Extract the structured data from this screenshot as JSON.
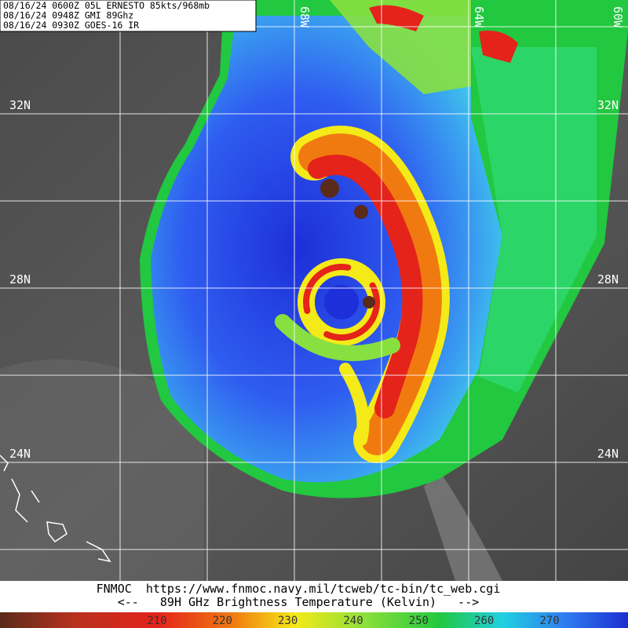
{
  "header": {
    "lines": [
      "08/16/24 0600Z  05L ERNESTO 85kts/968mb",
      "08/16/24 0948Z  GMI 89Ghz",
      "08/16/24 0930Z  GOES-16 IR"
    ]
  },
  "map": {
    "lat_grid": [
      34,
      32,
      30,
      28,
      26,
      24,
      22
    ],
    "lon_grid": [
      -72,
      -70,
      -68,
      -66,
      -64,
      -62
    ],
    "lat_labels": [
      {
        "value": 32,
        "label": "32N"
      },
      {
        "value": 28,
        "label": "28N"
      },
      {
        "value": 24,
        "label": "24N"
      }
    ],
    "lon_labels": [
      {
        "value": -68,
        "label": "68W"
      },
      {
        "value": -64,
        "label": "64W"
      },
      {
        "value": -60,
        "label": "60W"
      }
    ]
  },
  "footer": {
    "lines": [
      "FNMOC  https://www.fnmoc.navy.mil/tcweb/tc-bin/tc_web.cgi",
      "<--   89H GHz Brightness Temperature (Kelvin)   -->"
    ]
  },
  "colorbar": {
    "range": [
      186,
      282
    ],
    "ticks": [
      210,
      220,
      230,
      240,
      250,
      260,
      270
    ]
  }
}
